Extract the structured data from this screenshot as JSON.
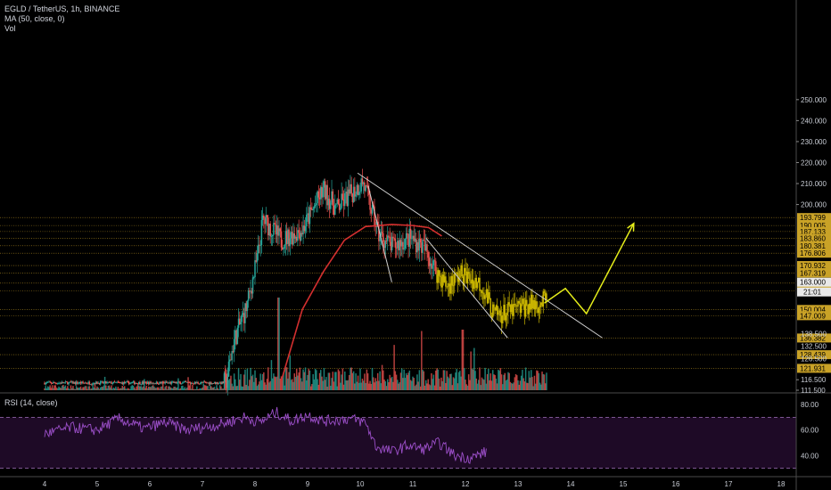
{
  "legend": {
    "symbol": "EGLD / TetherUS, 1h, BINANCE",
    "ma": "MA (50, close, 0)",
    "vol": "Vol",
    "rsi": "RSI (14, close)"
  },
  "colors": {
    "background": "#000000",
    "up": "#26a69a",
    "down": "#ef5350",
    "highlight": "#c8b400",
    "ma": "#d32f2f",
    "rsi": "#9c4fc9",
    "arrow": "#e6ee1a",
    "level": "#c9a227",
    "trendline": "#cfcfcf"
  },
  "chart_data": {
    "type": "candlestick",
    "x_ticks": [
      "4",
      "5",
      "6",
      "7",
      "8",
      "9",
      "10",
      "11",
      "12",
      "13",
      "14",
      "15",
      "16",
      "17",
      "18"
    ],
    "y_ticks": [
      "250.000",
      "240.000",
      "230.000",
      "220.000",
      "210.000",
      "200.000",
      "116.500",
      "111.500"
    ],
    "level_labels": [
      "193.799",
      "190.005",
      "187.133",
      "183.860",
      "180.381",
      "176.806",
      "170.932",
      "167.319",
      "162.518",
      "158.902",
      "150.004",
      "147.009",
      "136.382",
      "128.439",
      "121.931"
    ],
    "price_tags": [
      {
        "value": "163.000",
        "style": "current"
      },
      {
        "value": "21:01",
        "style": "countdown"
      },
      {
        "value": "138.500",
        "style": "plain"
      },
      {
        "value": "132.500",
        "style": "plain"
      },
      {
        "value": "126.500",
        "style": "plain"
      }
    ],
    "rsi_ticks": [
      "80.00",
      "60.00",
      "40.00"
    ],
    "rsi_bands": [
      70,
      30
    ],
    "ohlc_waypoints": [
      [
        4,
        115
      ],
      [
        7.45,
        115
      ],
      [
        7.6,
        135
      ],
      [
        7.85,
        152
      ],
      [
        8.05,
        175
      ],
      [
        8.15,
        193
      ],
      [
        8.5,
        183
      ],
      [
        8.9,
        188
      ],
      [
        9.3,
        207
      ],
      [
        9.55,
        198
      ],
      [
        10.05,
        211
      ],
      [
        10.35,
        186
      ],
      [
        10.6,
        180
      ],
      [
        10.95,
        184
      ],
      [
        11.2,
        180
      ],
      [
        11.45,
        168
      ],
      [
        11.65,
        161
      ],
      [
        11.9,
        167
      ],
      [
        12.3,
        162
      ],
      [
        12.55,
        147
      ],
      [
        12.85,
        149
      ],
      [
        13.2,
        152
      ],
      [
        13.55,
        154
      ]
    ],
    "moving_average": [
      [
        8.5,
        116
      ],
      [
        8.9,
        150
      ],
      [
        9.3,
        168
      ],
      [
        9.7,
        183
      ],
      [
        10.1,
        189.5
      ],
      [
        10.6,
        190.5
      ],
      [
        11.0,
        190
      ],
      [
        11.3,
        189
      ],
      [
        11.55,
        185
      ]
    ],
    "trendlines": [
      {
        "from": [
          9.95,
          215
        ],
        "to": [
          14.6,
          136.5
        ]
      },
      {
        "from": [
          10.15,
          209
        ],
        "to": [
          10.6,
          163
        ]
      },
      {
        "from": [
          11.25,
          184
        ],
        "to": [
          12.8,
          136.5
        ]
      }
    ],
    "projection_arrow": [
      [
        13.5,
        153
      ],
      [
        13.9,
        160
      ],
      [
        14.3,
        148
      ],
      [
        15.2,
        191
      ]
    ],
    "rsi_waypoints": [
      [
        4,
        57
      ],
      [
        4.5,
        62
      ],
      [
        5.0,
        60
      ],
      [
        5.4,
        69
      ],
      [
        5.9,
        61
      ],
      [
        6.3,
        66
      ],
      [
        6.7,
        60
      ],
      [
        7.3,
        64
      ],
      [
        7.8,
        70
      ],
      [
        8.1,
        66
      ],
      [
        8.4,
        74
      ],
      [
        8.7,
        67
      ],
      [
        9.0,
        72
      ],
      [
        9.3,
        67
      ],
      [
        9.8,
        69
      ],
      [
        10.1,
        66
      ],
      [
        10.3,
        47
      ],
      [
        10.6,
        43
      ],
      [
        10.9,
        48
      ],
      [
        11.2,
        45
      ],
      [
        11.5,
        50
      ],
      [
        11.8,
        40
      ],
      [
        12.1,
        38
      ],
      [
        12.4,
        43
      ]
    ]
  }
}
